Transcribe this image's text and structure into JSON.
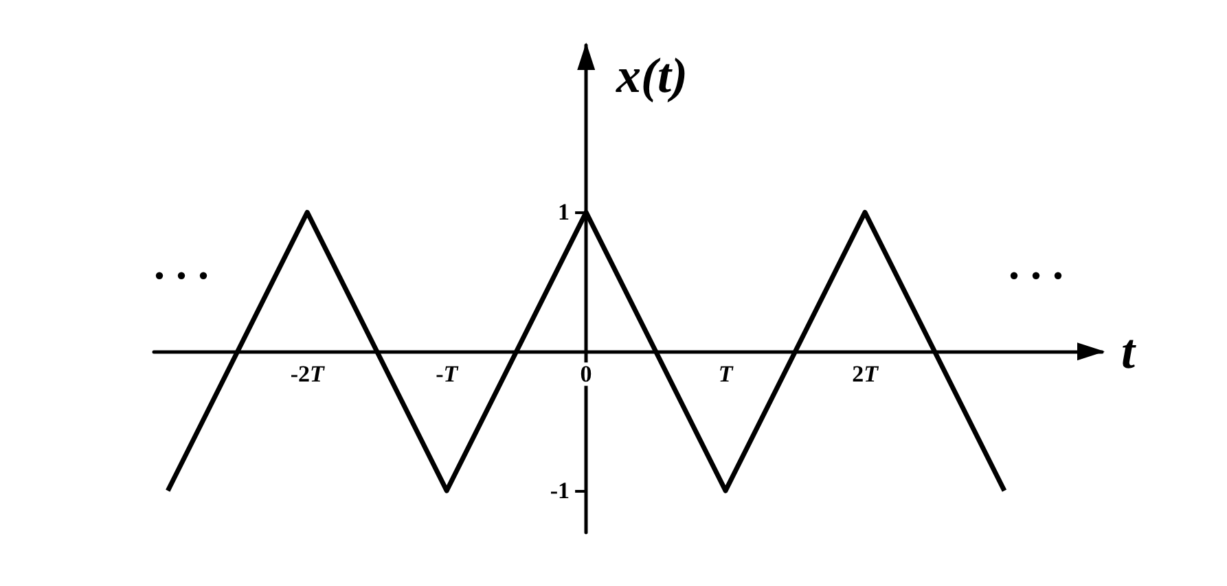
{
  "chart_data": {
    "type": "line",
    "xlabel": "t",
    "ylabel": "x(t)",
    "x": [
      -3,
      -2,
      -1,
      0,
      1,
      2,
      3
    ],
    "values": [
      -1,
      1,
      -1,
      1,
      -1,
      1,
      -1
    ],
    "color": "#000000",
    "xlim": [
      -3.1,
      3.7
    ],
    "ylim": [
      -1.3,
      2.2
    ],
    "xticks": [
      {
        "value": -2,
        "label": "-2T"
      },
      {
        "value": -1,
        "label": "-T"
      },
      0,
      {
        "value": 1,
        "label": "T"
      },
      {
        "value": 2,
        "label": "2T"
      }
    ],
    "yticks": [
      -1,
      1
    ],
    "marker": "none",
    "line_style": "solid",
    "annotations": [
      ". . .",
      ". . ."
    ]
  }
}
